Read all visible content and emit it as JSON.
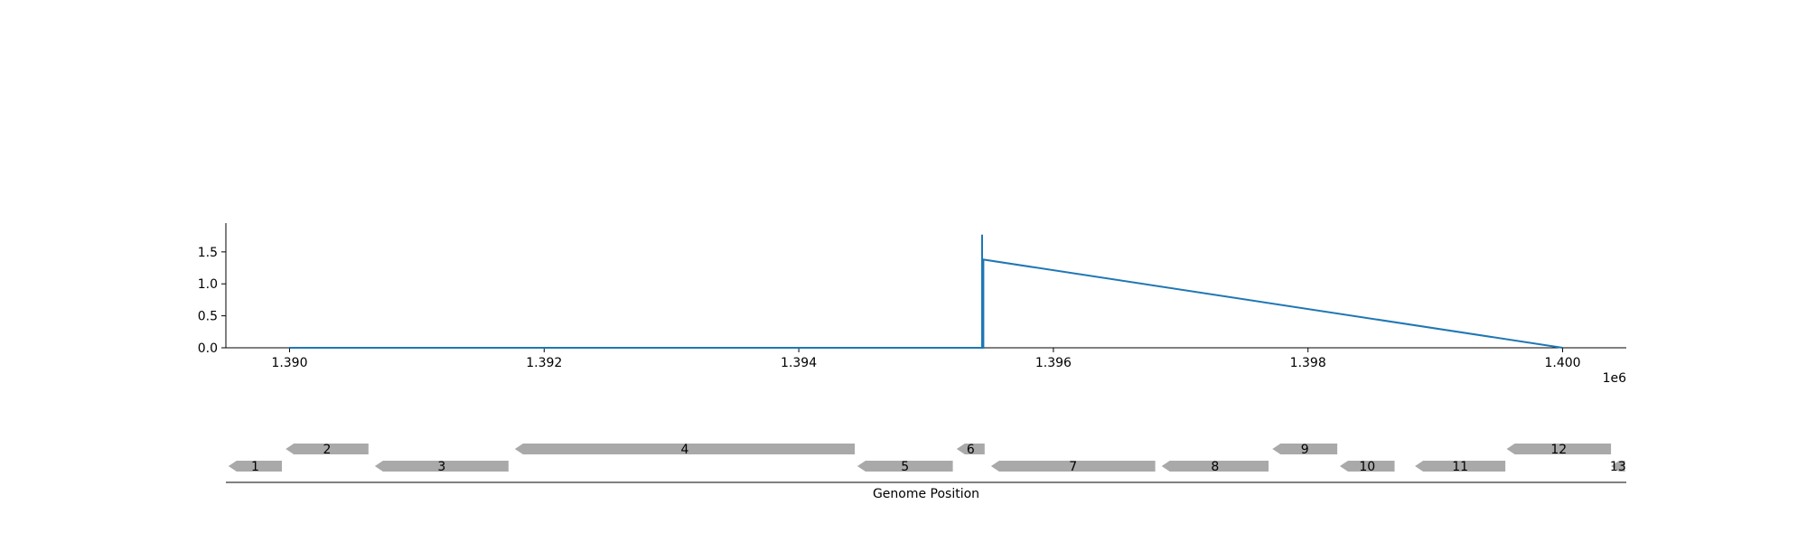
{
  "chart_data": {
    "type": "line",
    "signal": {
      "color": "#1f77b4",
      "x": [
        1390000,
        1395440,
        1395440,
        1395440,
        1395450,
        1395450,
        1400000
      ],
      "y": [
        0,
        0,
        1.77,
        0,
        0,
        1.38,
        0
      ],
      "xlim": [
        1389500,
        1400500
      ],
      "ylim": [
        0,
        1.95
      ],
      "xticks": [
        1390000,
        1392000,
        1394000,
        1396000,
        1398000,
        1400000
      ],
      "xtick_labels": [
        "1.390",
        "1.392",
        "1.394",
        "1.396",
        "1.398",
        "1.400"
      ],
      "yticks": [
        0,
        0.5,
        1.0,
        1.5
      ],
      "ytick_labels": [
        "0.0",
        "0.5",
        "1.0",
        "1.5"
      ],
      "offset_label": "1e6",
      "grid": false
    },
    "genes": {
      "xlabel": "Genome Position",
      "color": "#a9a9a9",
      "strand": "minus",
      "items": [
        {
          "label": "1",
          "start": 1389520,
          "end": 1389940,
          "row": 0
        },
        {
          "label": "2",
          "start": 1389970,
          "end": 1390620,
          "row": 1
        },
        {
          "label": "3",
          "start": 1390670,
          "end": 1391720,
          "row": 0
        },
        {
          "label": "4",
          "start": 1391770,
          "end": 1394440,
          "row": 1
        },
        {
          "label": "5",
          "start": 1394460,
          "end": 1395210,
          "row": 0
        },
        {
          "label": "6",
          "start": 1395240,
          "end": 1395460,
          "row": 1
        },
        {
          "label": "7",
          "start": 1395510,
          "end": 1396800,
          "row": 0
        },
        {
          "label": "8",
          "start": 1396850,
          "end": 1397690,
          "row": 0
        },
        {
          "label": "9",
          "start": 1397720,
          "end": 1398230,
          "row": 1
        },
        {
          "label": "10",
          "start": 1398250,
          "end": 1398680,
          "row": 0
        },
        {
          "label": "11",
          "start": 1398840,
          "end": 1399550,
          "row": 0
        },
        {
          "label": "12",
          "start": 1399560,
          "end": 1400380,
          "row": 1
        },
        {
          "label": "13",
          "start": 1400380,
          "end": 1400490,
          "row": 0
        }
      ]
    }
  }
}
